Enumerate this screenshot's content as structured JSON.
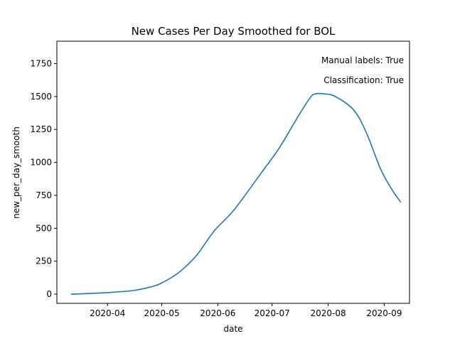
{
  "chart_data": {
    "type": "line",
    "title": "New Cases Per Day Smoothed for BOL",
    "xlabel": "date",
    "ylabel": "new_per_day_smooth",
    "xlim": [
      "2020-03-04",
      "2020-09-15"
    ],
    "ylim": [
      -70,
      1920
    ],
    "x_ticks": [
      "2020-04-01",
      "2020-05-01",
      "2020-06-01",
      "2020-07-01",
      "2020-08-01",
      "2020-09-01"
    ],
    "x_tick_labels": [
      "2020-04",
      "2020-05",
      "2020-06",
      "2020-07",
      "2020-08",
      "2020-09"
    ],
    "y_ticks": [
      0,
      250,
      500,
      750,
      1000,
      1250,
      1500,
      1750
    ],
    "y_tick_labels": [
      "0",
      "250",
      "500",
      "750",
      "1000",
      "1250",
      "1500",
      "1750"
    ],
    "annotations": [
      "Manual labels: True",
      "Classification: True"
    ],
    "grid": false,
    "series": [
      {
        "color": "#1f77b4",
        "x": [
          "2020-03-12",
          "2020-03-20",
          "2020-04-01",
          "2020-04-15",
          "2020-04-25",
          "2020-05-01",
          "2020-05-10",
          "2020-05-20",
          "2020-05-30",
          "2020-06-10",
          "2020-06-25",
          "2020-07-05",
          "2020-07-15",
          "2020-07-22",
          "2020-07-25",
          "2020-07-30",
          "2020-08-05",
          "2020-08-15",
          "2020-08-22",
          "2020-08-30",
          "2020-09-05",
          "2020-09-10"
        ],
        "y": [
          0,
          4,
          12,
          27,
          55,
          85,
          160,
          290,
          480,
          640,
          920,
          1110,
          1340,
          1490,
          1520,
          1520,
          1500,
          1400,
          1230,
          950,
          800,
          700
        ]
      }
    ]
  }
}
